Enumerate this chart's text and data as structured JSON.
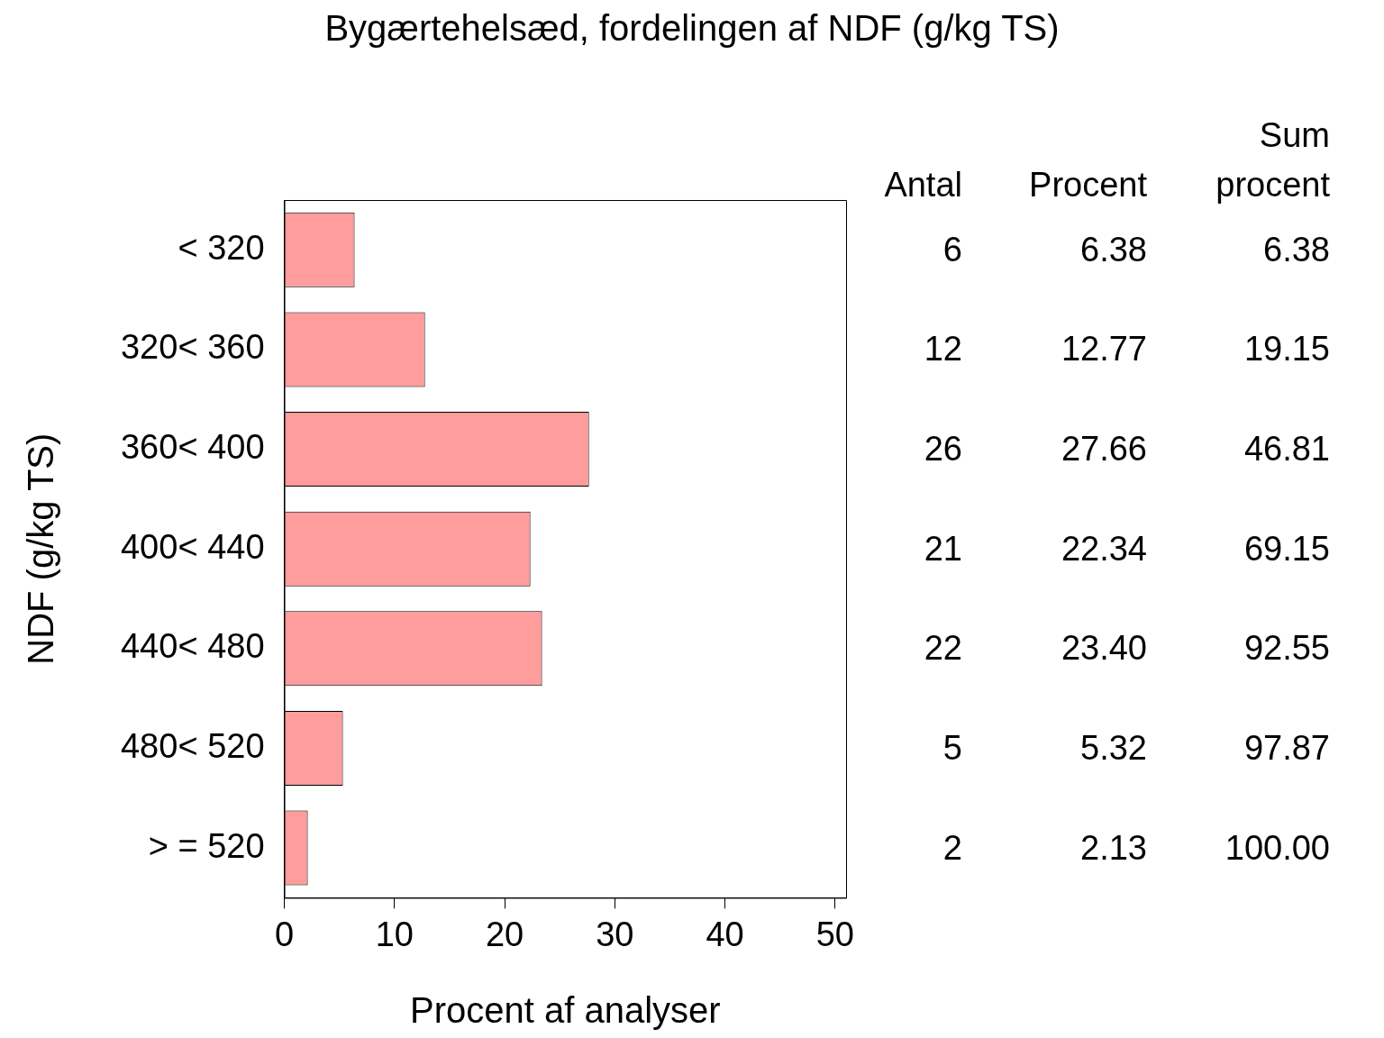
{
  "chart_data": {
    "type": "bar",
    "orientation": "horizontal",
    "title": "Bygærtehelsæd, fordelingen af NDF (g/kg TS)",
    "xlabel": "Procent af analyser",
    "ylabel": "NDF (g/kg TS)",
    "categories": [
      "< 320",
      "320< 360",
      "360< 400",
      "400< 440",
      "440< 480",
      "480< 520",
      "> = 520"
    ],
    "values": [
      6.38,
      12.77,
      27.66,
      22.34,
      23.4,
      5.32,
      2.13
    ],
    "value_labels": [
      "6.38",
      "12.77",
      "27.66",
      "22.34",
      "23.40",
      "5.32",
      "2.13"
    ],
    "color": "#ff9c9c",
    "xlim": [
      0,
      51
    ],
    "xticks": [
      0,
      10,
      20,
      30,
      40,
      50
    ],
    "grid": false,
    "annotations": [
      "Antal",
      "Procent",
      "Sum procent",
      "6",
      "6.38",
      "12",
      "19.15",
      "26",
      "46.81",
      "21",
      "69.15",
      "22",
      "92.55",
      "5",
      "97.87",
      "2",
      "100.00"
    ]
  }
}
